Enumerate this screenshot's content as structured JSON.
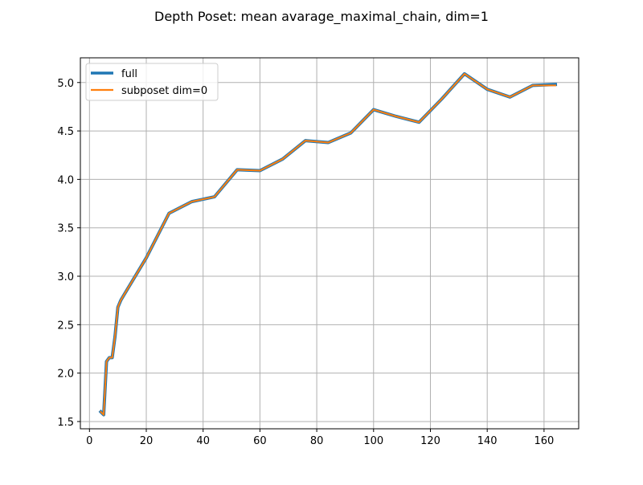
{
  "chart_data": {
    "type": "line",
    "title": "Depth Poset: mean avarage_maximal_chain, dim=1",
    "xlabel": "",
    "ylabel": "",
    "xlim": [
      -3.2,
      172.2
    ],
    "ylim": [
      1.425,
      5.255
    ],
    "x_ticks": [
      {
        "value": 0,
        "label": "0"
      },
      {
        "value": 20,
        "label": "20"
      },
      {
        "value": 40,
        "label": "40"
      },
      {
        "value": 60,
        "label": "60"
      },
      {
        "value": 80,
        "label": "80"
      },
      {
        "value": 100,
        "label": "100"
      },
      {
        "value": 120,
        "label": "120"
      },
      {
        "value": 140,
        "label": "140"
      },
      {
        "value": 160,
        "label": "160"
      }
    ],
    "y_ticks": [
      {
        "value": 1.5,
        "label": "1.5"
      },
      {
        "value": 2.0,
        "label": "2.0"
      },
      {
        "value": 2.5,
        "label": "2.5"
      },
      {
        "value": 3.0,
        "label": "3.0"
      },
      {
        "value": 3.5,
        "label": "3.5"
      },
      {
        "value": 4.0,
        "label": "4.0"
      },
      {
        "value": 4.5,
        "label": "4.5"
      },
      {
        "value": 5.0,
        "label": "5.0"
      }
    ],
    "grid": true,
    "legend_position": "top-left",
    "x": [
      4,
      5,
      6,
      7,
      8,
      9,
      10,
      11,
      12,
      20,
      28,
      36,
      44,
      52,
      60,
      68,
      76,
      84,
      92,
      100,
      108,
      116,
      124,
      132,
      140,
      148,
      156,
      164
    ],
    "series": [
      {
        "name": "full",
        "color": "#1f77b4",
        "values": [
          1.6,
          1.57,
          2.12,
          2.16,
          2.16,
          2.38,
          2.68,
          2.75,
          2.8,
          3.19,
          3.65,
          3.77,
          3.82,
          4.1,
          4.09,
          4.21,
          4.4,
          4.38,
          4.48,
          4.72,
          4.65,
          4.59,
          4.83,
          5.09,
          4.93,
          4.85,
          4.97,
          4.98
        ]
      },
      {
        "name": "subposet dim=0",
        "color": "#ff7f0e",
        "values": [
          1.6,
          1.57,
          2.12,
          2.16,
          2.16,
          2.38,
          2.68,
          2.75,
          2.8,
          3.19,
          3.65,
          3.77,
          3.82,
          4.1,
          4.09,
          4.21,
          4.4,
          4.38,
          4.48,
          4.72,
          4.65,
          4.59,
          4.83,
          5.09,
          4.93,
          4.85,
          4.97,
          4.97
        ]
      }
    ]
  }
}
